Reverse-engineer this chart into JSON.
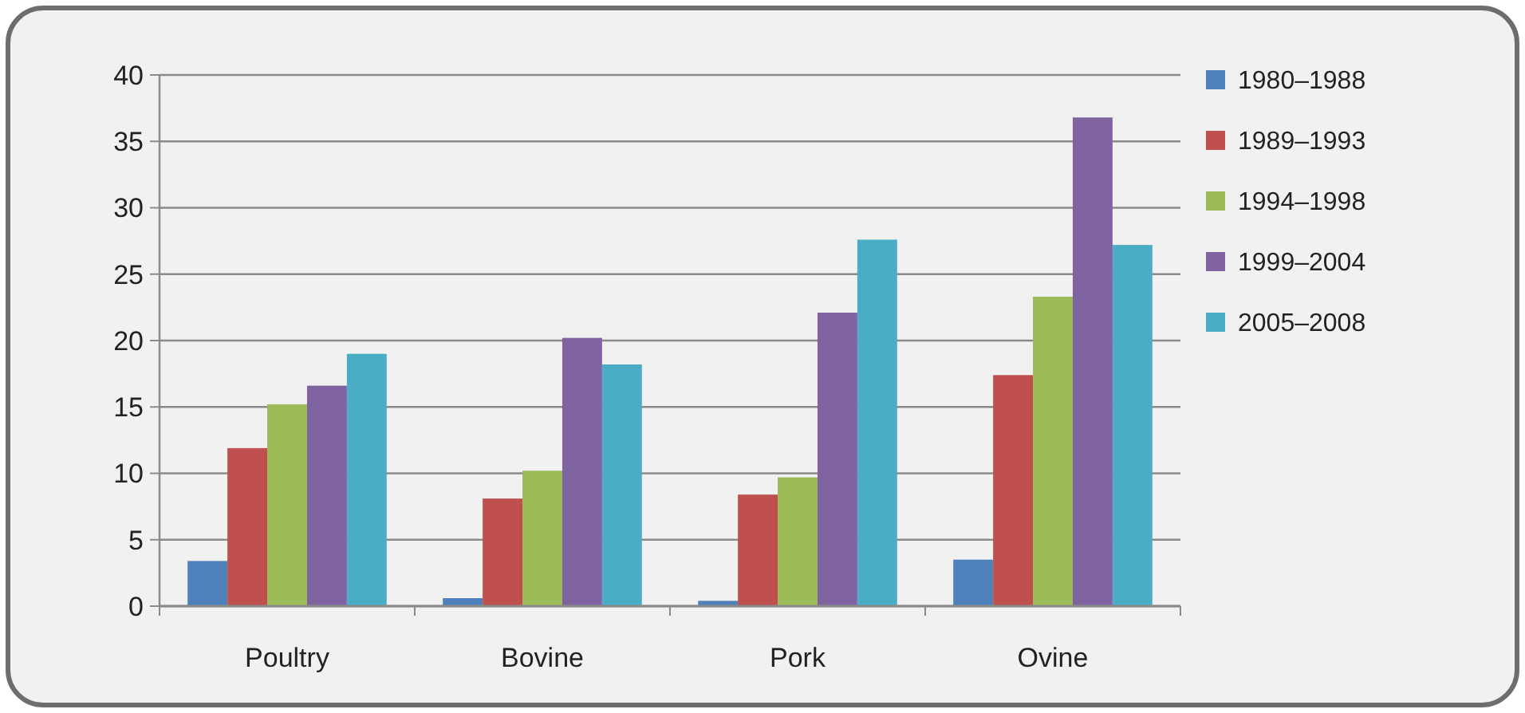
{
  "chart_data": {
    "type": "bar",
    "categories": [
      "Poultry",
      "Bovine",
      "Pork",
      "Ovine"
    ],
    "series": [
      {
        "name": "1980–1988",
        "color": "#4f81bd",
        "values": [
          3.4,
          0.6,
          0.4,
          3.5
        ]
      },
      {
        "name": "1989–1993",
        "color": "#c0504d",
        "values": [
          11.9,
          8.1,
          8.4,
          17.4
        ]
      },
      {
        "name": "1994–1998",
        "color": "#9bbb59",
        "values": [
          15.2,
          10.2,
          9.7,
          23.3
        ]
      },
      {
        "name": "1999–2004",
        "color": "#8064a2",
        "values": [
          16.6,
          20.2,
          22.1,
          36.8
        ]
      },
      {
        "name": "2005–2008",
        "color": "#4bacc6",
        "values": [
          19.0,
          18.2,
          27.6,
          27.2
        ]
      }
    ],
    "ylim": [
      0,
      40
    ],
    "yticks": [
      0,
      5,
      10,
      15,
      20,
      25,
      30,
      35,
      40
    ],
    "grid": "y",
    "legend": "right"
  }
}
